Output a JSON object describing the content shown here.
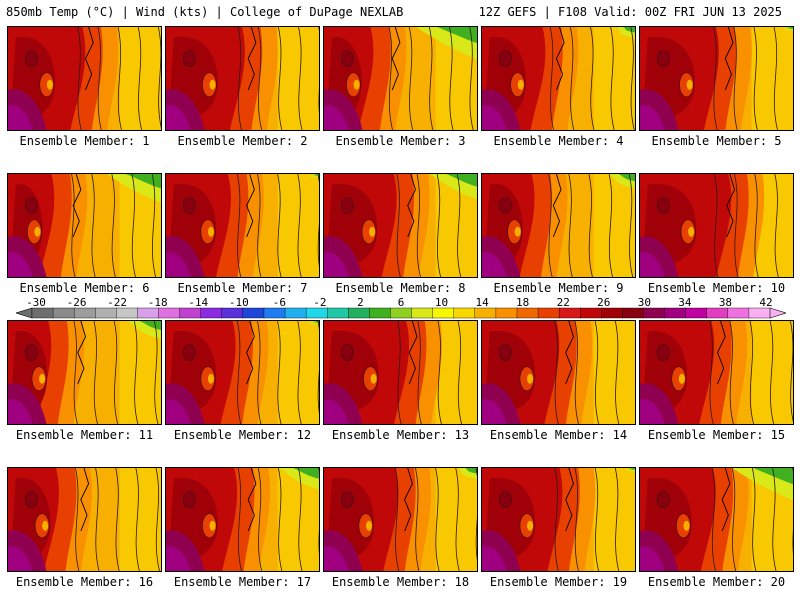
{
  "header": {
    "left": "850mb Temp (°C) | Wind (kts) | College of DuPage NEXLAB",
    "right": "12Z GEFS | F108 Valid: 00Z FRI JUN 13 2025"
  },
  "panels": [
    {
      "label": "Ensemble Member: 1",
      "core_shift": 0.0,
      "hot_zone": 0.62,
      "green_corner": 0.0
    },
    {
      "label": "Ensemble Member: 2",
      "core_shift": 0.03,
      "hot_zone": 0.6,
      "green_corner": 0.0
    },
    {
      "label": "Ensemble Member: 3",
      "core_shift": -0.06,
      "hot_zone": 0.5,
      "green_corner": 0.9
    },
    {
      "label": "Ensemble Member: 4",
      "core_shift": -0.02,
      "hot_zone": 0.55,
      "green_corner": 0.3
    },
    {
      "label": "Ensemble Member: 5",
      "core_shift": 0.05,
      "hot_zone": 0.58,
      "green_corner": 0.1
    },
    {
      "label": "Ensemble Member: 6",
      "core_shift": -0.08,
      "hot_zone": 0.5,
      "green_corner": 0.8
    },
    {
      "label": "Ensemble Member: 7",
      "core_shift": 0.02,
      "hot_zone": 0.52,
      "green_corner": 0.1
    },
    {
      "label": "Ensemble Member: 8",
      "core_shift": 0.04,
      "hot_zone": 0.55,
      "green_corner": 0.7
    },
    {
      "label": "Ensemble Member: 9",
      "core_shift": -0.04,
      "hot_zone": 0.5,
      "green_corner": 0.4
    },
    {
      "label": "Ensemble Member: 10",
      "core_shift": 0.06,
      "hot_zone": 0.65,
      "green_corner": 0.0
    },
    {
      "label": "Ensemble Member: 11",
      "core_shift": -0.05,
      "hot_zone": 0.45,
      "green_corner": 0.5
    },
    {
      "label": "Ensemble Member: 12",
      "core_shift": 0.02,
      "hot_zone": 0.55,
      "green_corner": 0.1
    },
    {
      "label": "Ensemble Member: 13",
      "core_shift": 0.05,
      "hot_zone": 0.62,
      "green_corner": 0.0
    },
    {
      "label": "Ensemble Member: 14",
      "core_shift": 0.04,
      "hot_zone": 0.58,
      "green_corner": 0.0
    },
    {
      "label": "Ensemble Member: 15",
      "core_shift": 0.0,
      "hot_zone": 0.6,
      "green_corner": 0.0
    },
    {
      "label": "Ensemble Member: 16",
      "core_shift": -0.03,
      "hot_zone": 0.48,
      "green_corner": 0.0
    },
    {
      "label": "Ensemble Member: 17",
      "core_shift": 0.03,
      "hot_zone": 0.55,
      "green_corner": 0.6
    },
    {
      "label": "Ensemble Member: 18",
      "core_shift": 0.02,
      "hot_zone": 0.58,
      "green_corner": 0.3
    },
    {
      "label": "Ensemble Member: 19",
      "core_shift": 0.04,
      "hot_zone": 0.6,
      "green_corner": 0.1
    },
    {
      "label": "Ensemble Member: 20",
      "core_shift": 0.03,
      "hot_zone": 0.58,
      "green_corner": 0.9
    }
  ],
  "colorbar": {
    "tick_labels": [
      "-30",
      "-26",
      "-22",
      "-18",
      "-14",
      "-10",
      "-6",
      "-2",
      "2",
      "6",
      "10",
      "14",
      "18",
      "22",
      "26",
      "30",
      "34",
      "38",
      "42"
    ],
    "colors": [
      "#6e6e6e",
      "#8a8a8a",
      "#9c9c9c",
      "#b0b0b0",
      "#c6c6c6",
      "#d8a0e8",
      "#e070e0",
      "#c040d0",
      "#8a2be2",
      "#5a30d8",
      "#1e46d8",
      "#1e7cf0",
      "#20b0f0",
      "#20d8e8",
      "#20c8a8",
      "#20b060",
      "#40b020",
      "#90d020",
      "#d8e818",
      "#f8f800",
      "#f8d800",
      "#f8b000",
      "#f89000",
      "#f06800",
      "#e84000",
      "#d81818",
      "#c00808",
      "#a00008",
      "#880010",
      "#900050",
      "#a00080",
      "#c000a0",
      "#e040c0",
      "#f070e0",
      "#f8b0f0"
    ]
  }
}
